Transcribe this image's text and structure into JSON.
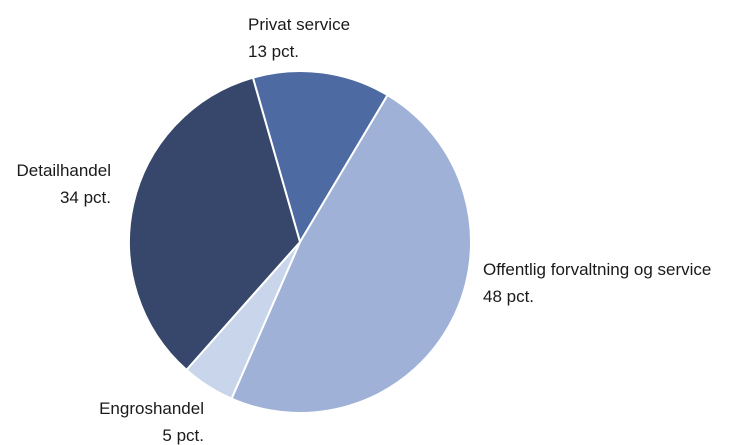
{
  "chart_data": {
    "type": "pie",
    "start_angle_deg": -16,
    "direction": "clockwise",
    "slices": [
      {
        "name": "Privat service",
        "value_label": "13 pct.",
        "value": 13,
        "color": "#4e6aa3"
      },
      {
        "name": "Offentlig forvaltning og service",
        "value_label": "48 pct.",
        "value": 48,
        "color": "#9fb1d6"
      },
      {
        "name": "Engroshandel",
        "value_label": "5 pct.",
        "value": 5,
        "color": "#c8d5ea"
      },
      {
        "name": "Detailhandel",
        "value_label": "34 pct.",
        "value": 34,
        "color": "#36476b"
      }
    ],
    "slice_border_color": "#ffffff"
  }
}
